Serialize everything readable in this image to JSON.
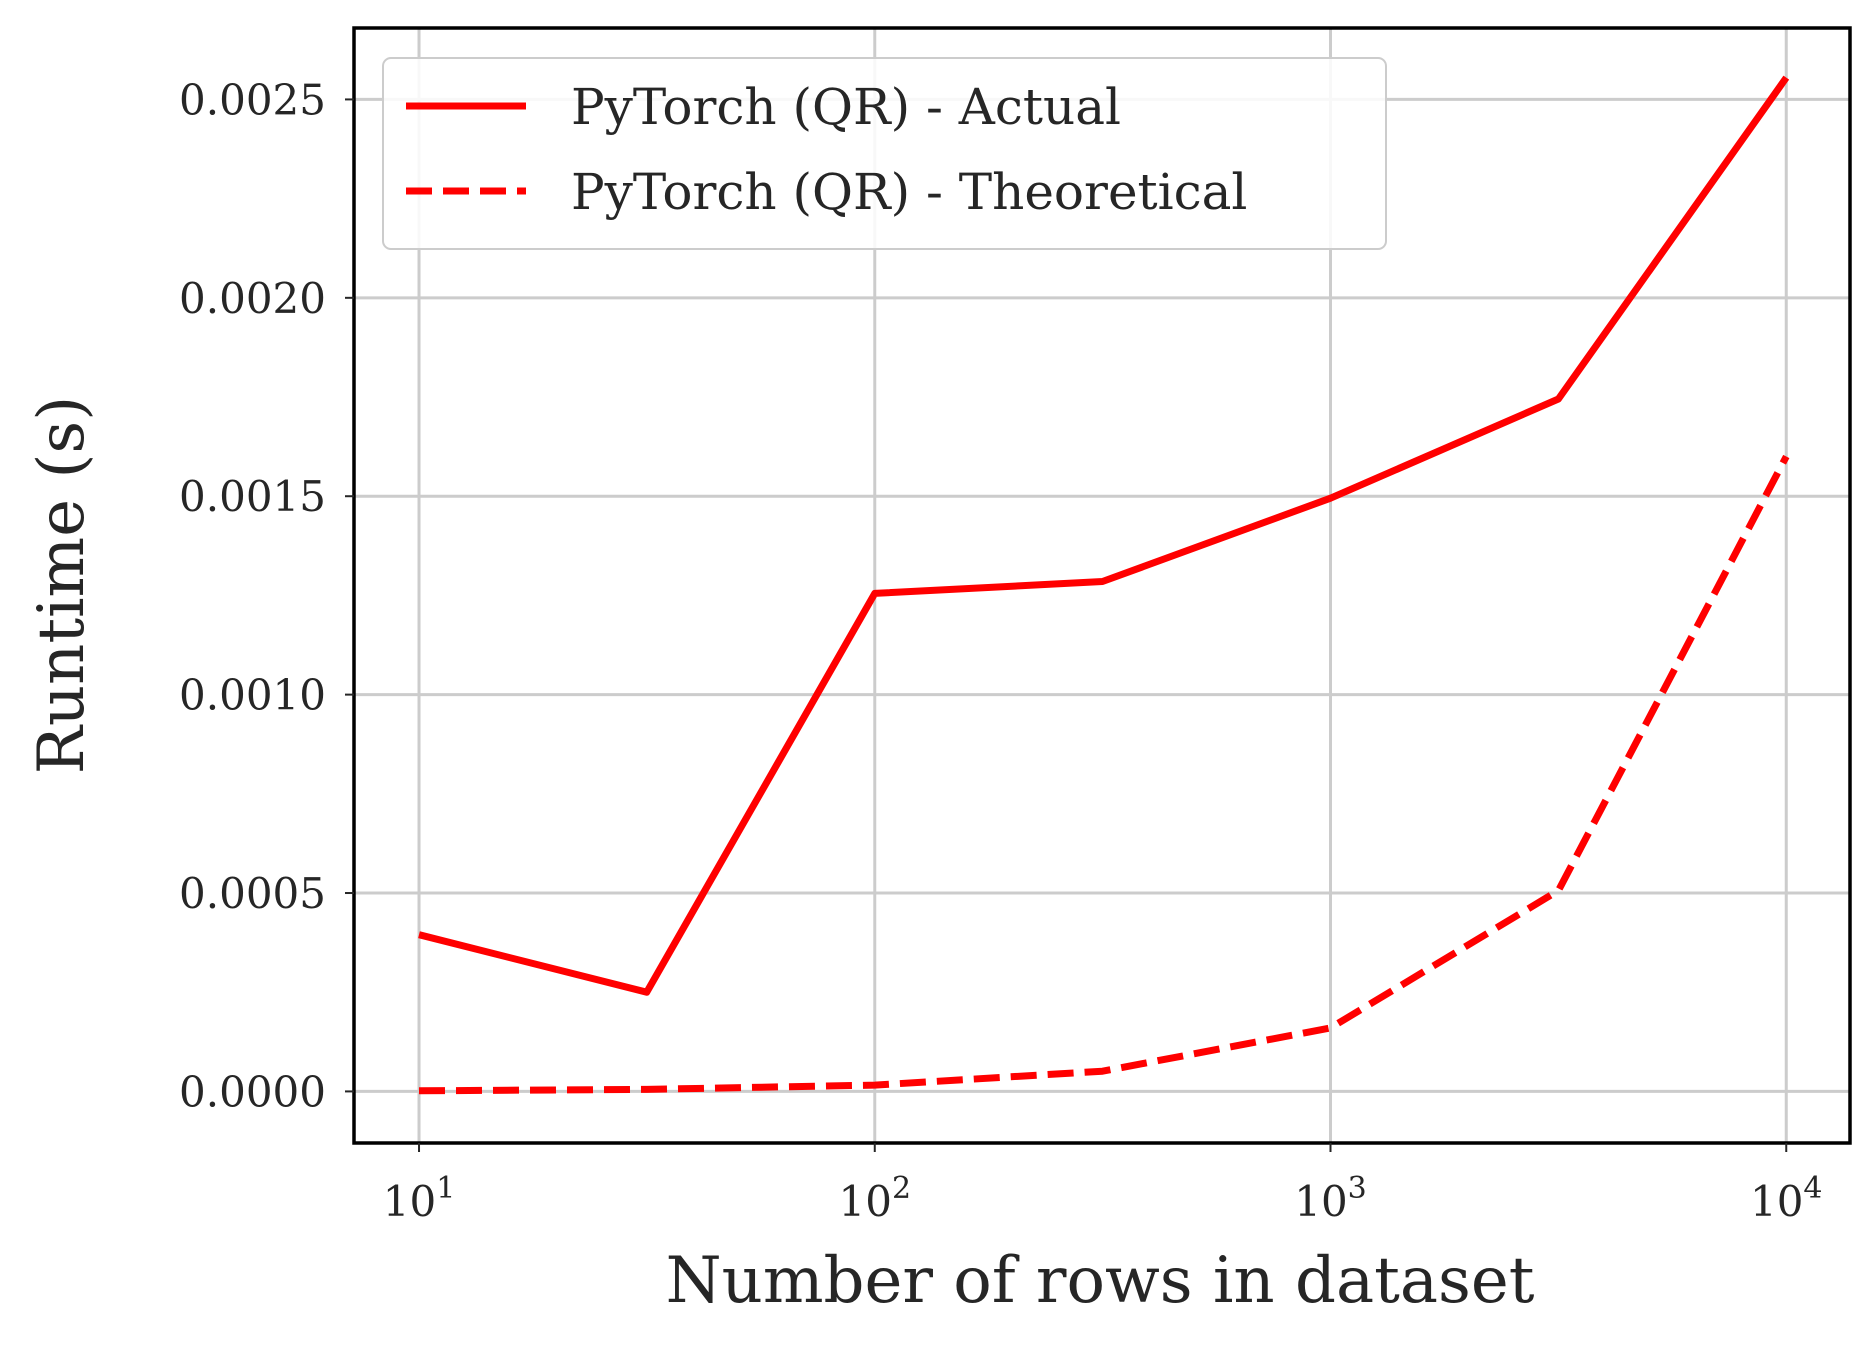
{
  "chart_data": {
    "type": "line",
    "xscale": "log",
    "xlabel": "Number of rows in dataset",
    "ylabel": "Runtime (s)",
    "xlim": [
      7.2,
      13800
    ],
    "ylim": [
      -0.00013,
      0.00268
    ],
    "grid": true,
    "legend_position": "top-left",
    "x_ticks": [
      {
        "value": 10,
        "base": "10",
        "exp": "1"
      },
      {
        "value": 100,
        "base": "10",
        "exp": "2"
      },
      {
        "value": 1000,
        "base": "10",
        "exp": "3"
      },
      {
        "value": 10000,
        "base": "10",
        "exp": "4"
      }
    ],
    "y_ticks": [
      {
        "value": 0.0,
        "label": "0.0000"
      },
      {
        "value": 0.0005,
        "label": "0.0005"
      },
      {
        "value": 0.001,
        "label": "0.0010"
      },
      {
        "value": 0.0015,
        "label": "0.0015"
      },
      {
        "value": 0.002,
        "label": "0.0020"
      },
      {
        "value": 0.0025,
        "label": "0.0025"
      }
    ],
    "x": [
      10,
      31.6,
      100,
      316,
      1000,
      3162,
      10000
    ],
    "series": [
      {
        "name": "PyTorch (QR) - Actual",
        "style": "solid",
        "color": "#ff0000",
        "values": [
          0.000395,
          0.00025,
          0.001255,
          0.001285,
          0.001495,
          0.001745,
          0.002555
        ]
      },
      {
        "name": "PyTorch (QR) - Theoretical",
        "style": "dashed",
        "color": "#ff0000",
        "values": [
          1.6e-06,
          5.1e-06,
          1.6e-05,
          5.1e-05,
          0.00016,
          0.000506,
          0.0016
        ]
      }
    ]
  }
}
